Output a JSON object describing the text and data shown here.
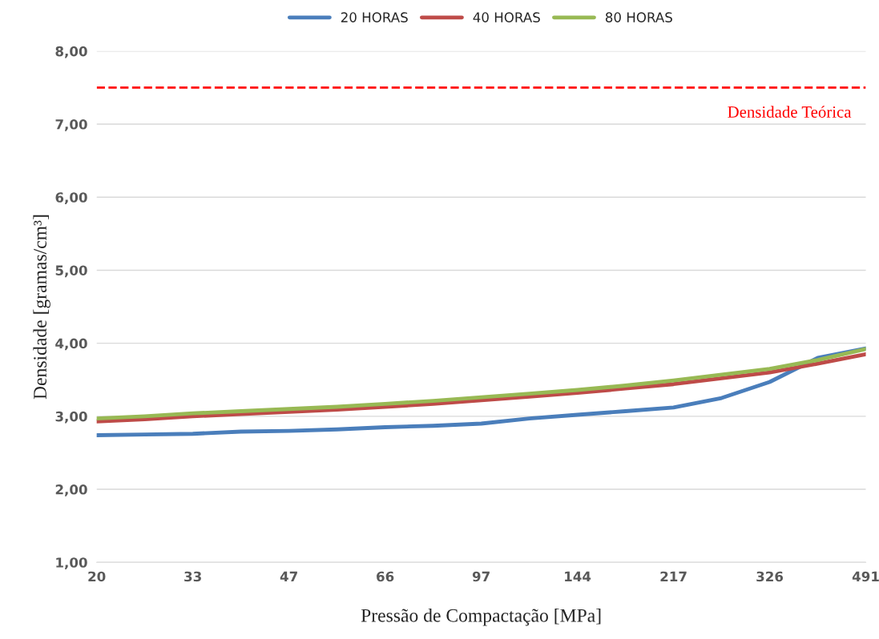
{
  "chart_data": {
    "type": "line",
    "xlabel": "Pressão de Compactação [MPa]",
    "ylabel": "Densidade [gramas/cm³]",
    "categories": [
      "20",
      null,
      "33",
      null,
      "47",
      null,
      "66",
      null,
      "97",
      null,
      "144",
      null,
      "217",
      null,
      "326",
      null,
      "491"
    ],
    "series": [
      {
        "name": "20 HORAS",
        "color": "#4a7ebb",
        "values": [
          2.74,
          2.75,
          2.76,
          2.79,
          2.8,
          2.82,
          2.85,
          2.87,
          2.9,
          2.97,
          3.02,
          3.07,
          3.12,
          3.25,
          3.47,
          3.8,
          3.93
        ]
      },
      {
        "name": "40 HORAS",
        "color": "#be4b48",
        "values": [
          2.93,
          2.96,
          3.0,
          3.03,
          3.06,
          3.09,
          3.13,
          3.17,
          3.22,
          3.27,
          3.32,
          3.38,
          3.44,
          3.52,
          3.6,
          3.72,
          3.85
        ]
      },
      {
        "name": "80 HORAS",
        "color": "#98b954",
        "values": [
          2.97,
          3.0,
          3.04,
          3.07,
          3.1,
          3.13,
          3.17,
          3.21,
          3.26,
          3.31,
          3.36,
          3.42,
          3.49,
          3.57,
          3.65,
          3.77,
          3.92
        ]
      }
    ],
    "ylim": [
      1,
      8
    ],
    "yticks": [
      {
        "value": 1,
        "label": "1,00"
      },
      {
        "value": 2,
        "label": "2,00"
      },
      {
        "value": 3,
        "label": "3,00"
      },
      {
        "value": 4,
        "label": "4,00"
      },
      {
        "value": 5,
        "label": "5,00"
      },
      {
        "value": 6,
        "label": "6,00"
      },
      {
        "value": 7,
        "label": "7,00"
      },
      {
        "value": 8,
        "label": "8,00"
      }
    ],
    "ref_lines": [
      {
        "axis": "y",
        "value": 7.5,
        "label": "Densidade Teórica",
        "color": "#ff0000",
        "line_style": "dashed"
      }
    ],
    "grid": "y",
    "legend": "top",
    "marker": "none",
    "line_style": "solid"
  }
}
